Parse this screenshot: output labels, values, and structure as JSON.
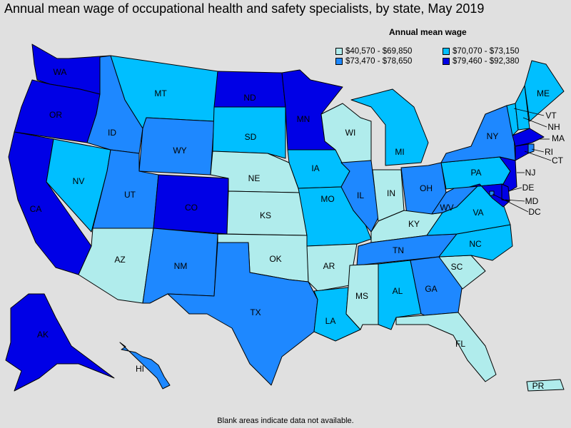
{
  "title": "Annual mean wage of occupational health and safety specialists, by state, May 2019",
  "legend": {
    "title": "Annual mean wage",
    "bins": [
      {
        "label": "$40,570 - $69,850",
        "color": "#b0ecec"
      },
      {
        "label": "$70,070 - $73,150",
        "color": "#00bfff"
      },
      {
        "label": "$73,470 - $78,650",
        "color": "#1e88ff"
      },
      {
        "label": "$79,460 - $92,380",
        "color": "#0000e6"
      }
    ]
  },
  "footnote": "Blank areas indicate data not available.",
  "states": {
    "WA": 3,
    "OR": 3,
    "CA": 3,
    "NV": 1,
    "ID": 2,
    "MT": 1,
    "WY": 2,
    "UT": 2,
    "AZ": 0,
    "CO": 3,
    "NM": 2,
    "ND": 3,
    "SD": 1,
    "NE": 0,
    "KS": 0,
    "OK": 0,
    "TX": 2,
    "MN": 3,
    "IA": 1,
    "MO": 1,
    "AR": 0,
    "LA": 1,
    "WI": 0,
    "IL": 2,
    "MI": 1,
    "IN": 0,
    "OH": 2,
    "KY": 0,
    "TN": 2,
    "MS": 0,
    "AL": 1,
    "GA": 2,
    "FL": 0,
    "SC": 0,
    "NC": 1,
    "VA": 1,
    "WV": 2,
    "PA": 1,
    "NY": 2,
    "ME": 1,
    "VT": 1,
    "NH": 1,
    "MA": 3,
    "CT": 3,
    "RI": 2,
    "NJ": 3,
    "DE": 3,
    "MD": 3,
    "DC": 2,
    "AK": 3,
    "HI": 2,
    "PR": 0
  }
}
